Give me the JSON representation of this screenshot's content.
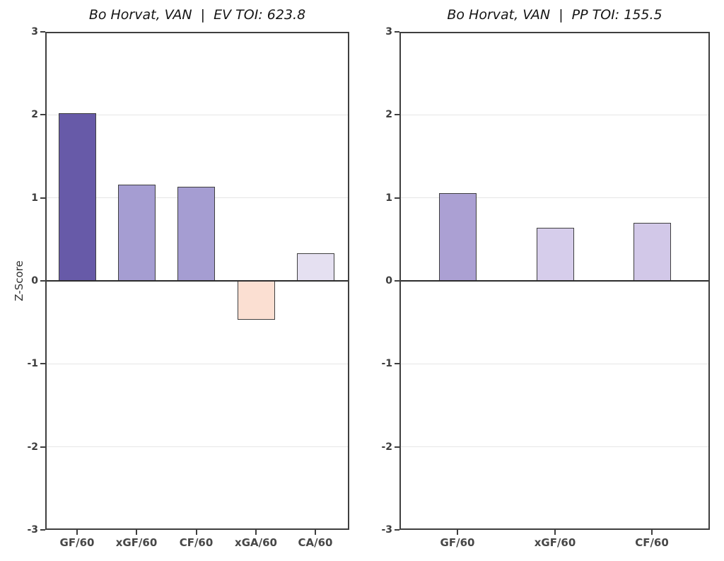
{
  "figure": {
    "background": "#ffffff",
    "ylabel": "Z-Score",
    "styles": {
      "spine_color": "#3f3f3f",
      "grid_color": "#e6e6e6",
      "zero_line_color": "#2d2d2d",
      "bar_edge_color": "#3f3f3f",
      "y_tick_label_color": "#3d3d3d",
      "x_tick_label_color": "#474747",
      "title_color": "#151515"
    }
  },
  "chart_data": [
    {
      "type": "bar",
      "title": "Bo Horvat, VAN  |  EV TOI: 623.8",
      "ylabel": "Z-Score",
      "ylim": [
        -3,
        3
      ],
      "yticks": [
        3,
        2,
        1,
        0,
        -1,
        -2,
        -3
      ],
      "grid": "horizontal",
      "legend": "none",
      "categories": [
        "GF/60",
        "xGF/60",
        "CF/60",
        "xGA/60",
        "CA/60"
      ],
      "values": [
        2.02,
        1.16,
        1.13,
        -0.47,
        0.33
      ],
      "bar_colors": [
        "#675aa8",
        "#a59dd2",
        "#a59dd2",
        "#fbdfd2",
        "#e5e0f1"
      ],
      "bar_patterns": [
        "solid",
        "solid",
        "solid",
        "solid",
        "solid"
      ]
    },
    {
      "type": "bar",
      "title": "Bo Horvat, VAN  |  PP TOI: 155.5",
      "ylabel": "",
      "ylim": [
        -3,
        3
      ],
      "yticks": [
        3,
        2,
        1,
        0,
        -1,
        -2,
        -3
      ],
      "grid": "horizontal",
      "legend": "none",
      "categories": [
        "GF/60",
        "xGF/60",
        "CF/60"
      ],
      "values": [
        1.06,
        0.64,
        0.7
      ],
      "bar_colors": [
        "#aba0d3",
        "#d6cdeb",
        "#d2c8e8"
      ],
      "bar_patterns": [
        "solid",
        "dots-light",
        "dots-dark"
      ]
    }
  ]
}
